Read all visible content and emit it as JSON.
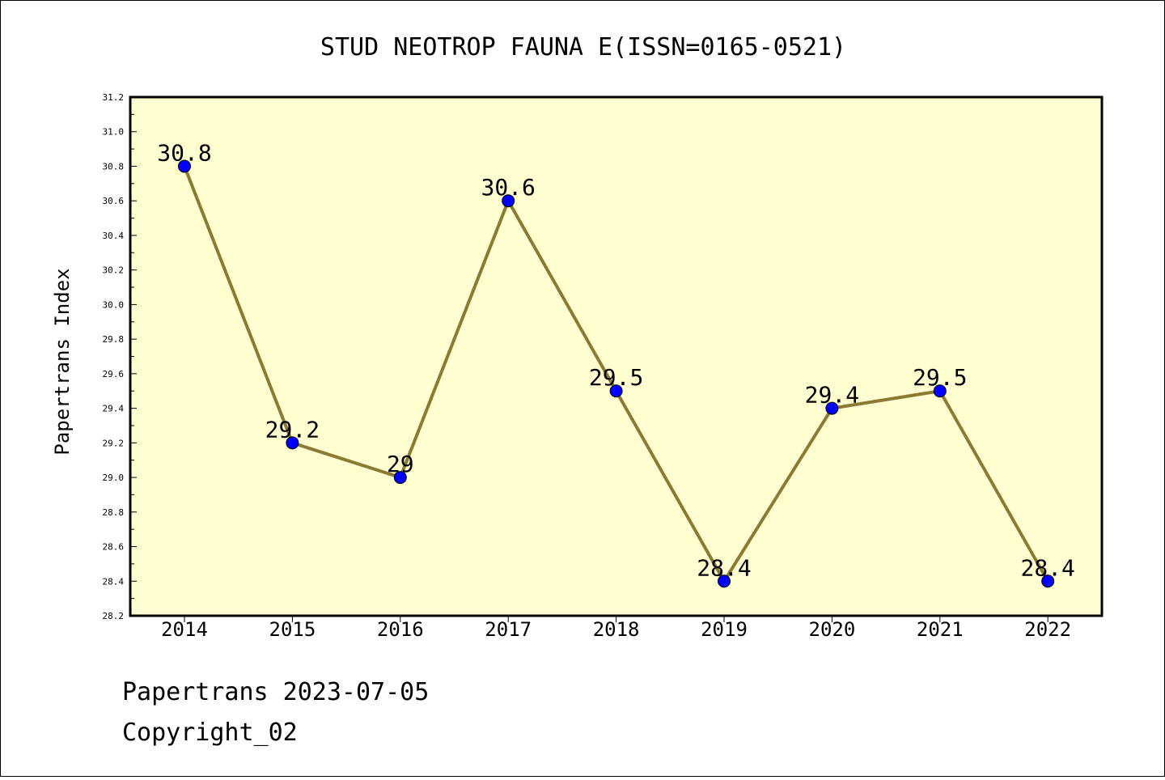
{
  "chart_data": {
    "type": "line",
    "title": "STUD NEOTROP FAUNA E(ISSN=0165-0521)",
    "xlabel": "",
    "ylabel": "Papertrans Index",
    "categories": [
      "2014",
      "2015",
      "2016",
      "2017",
      "2018",
      "2019",
      "2020",
      "2021",
      "2022"
    ],
    "values": [
      30.8,
      29.2,
      29.0,
      30.6,
      29.5,
      28.4,
      29.4,
      29.5,
      28.4
    ],
    "data_labels": [
      "30.8",
      "29.2",
      "29",
      "30.6",
      "29.5",
      "28.4",
      "29.4",
      "29.5",
      "28.4"
    ],
    "ylim": [
      28.2,
      31.2
    ],
    "yticks": [
      "28.2",
      "28.4",
      "28.6",
      "28.8",
      "29.0",
      "29.2",
      "29.4",
      "29.6",
      "29.8",
      "30.0",
      "30.2",
      "30.4",
      "30.6",
      "30.8",
      "31.0",
      "31.2"
    ],
    "grid": false,
    "colors": {
      "plot_background": "#ffffd2",
      "line": "#8b7a34",
      "marker": "#0000ff",
      "axes": "#000000"
    }
  },
  "footer": {
    "line1": "Papertrans 2023-07-05",
    "line2": "Copyright_02"
  }
}
